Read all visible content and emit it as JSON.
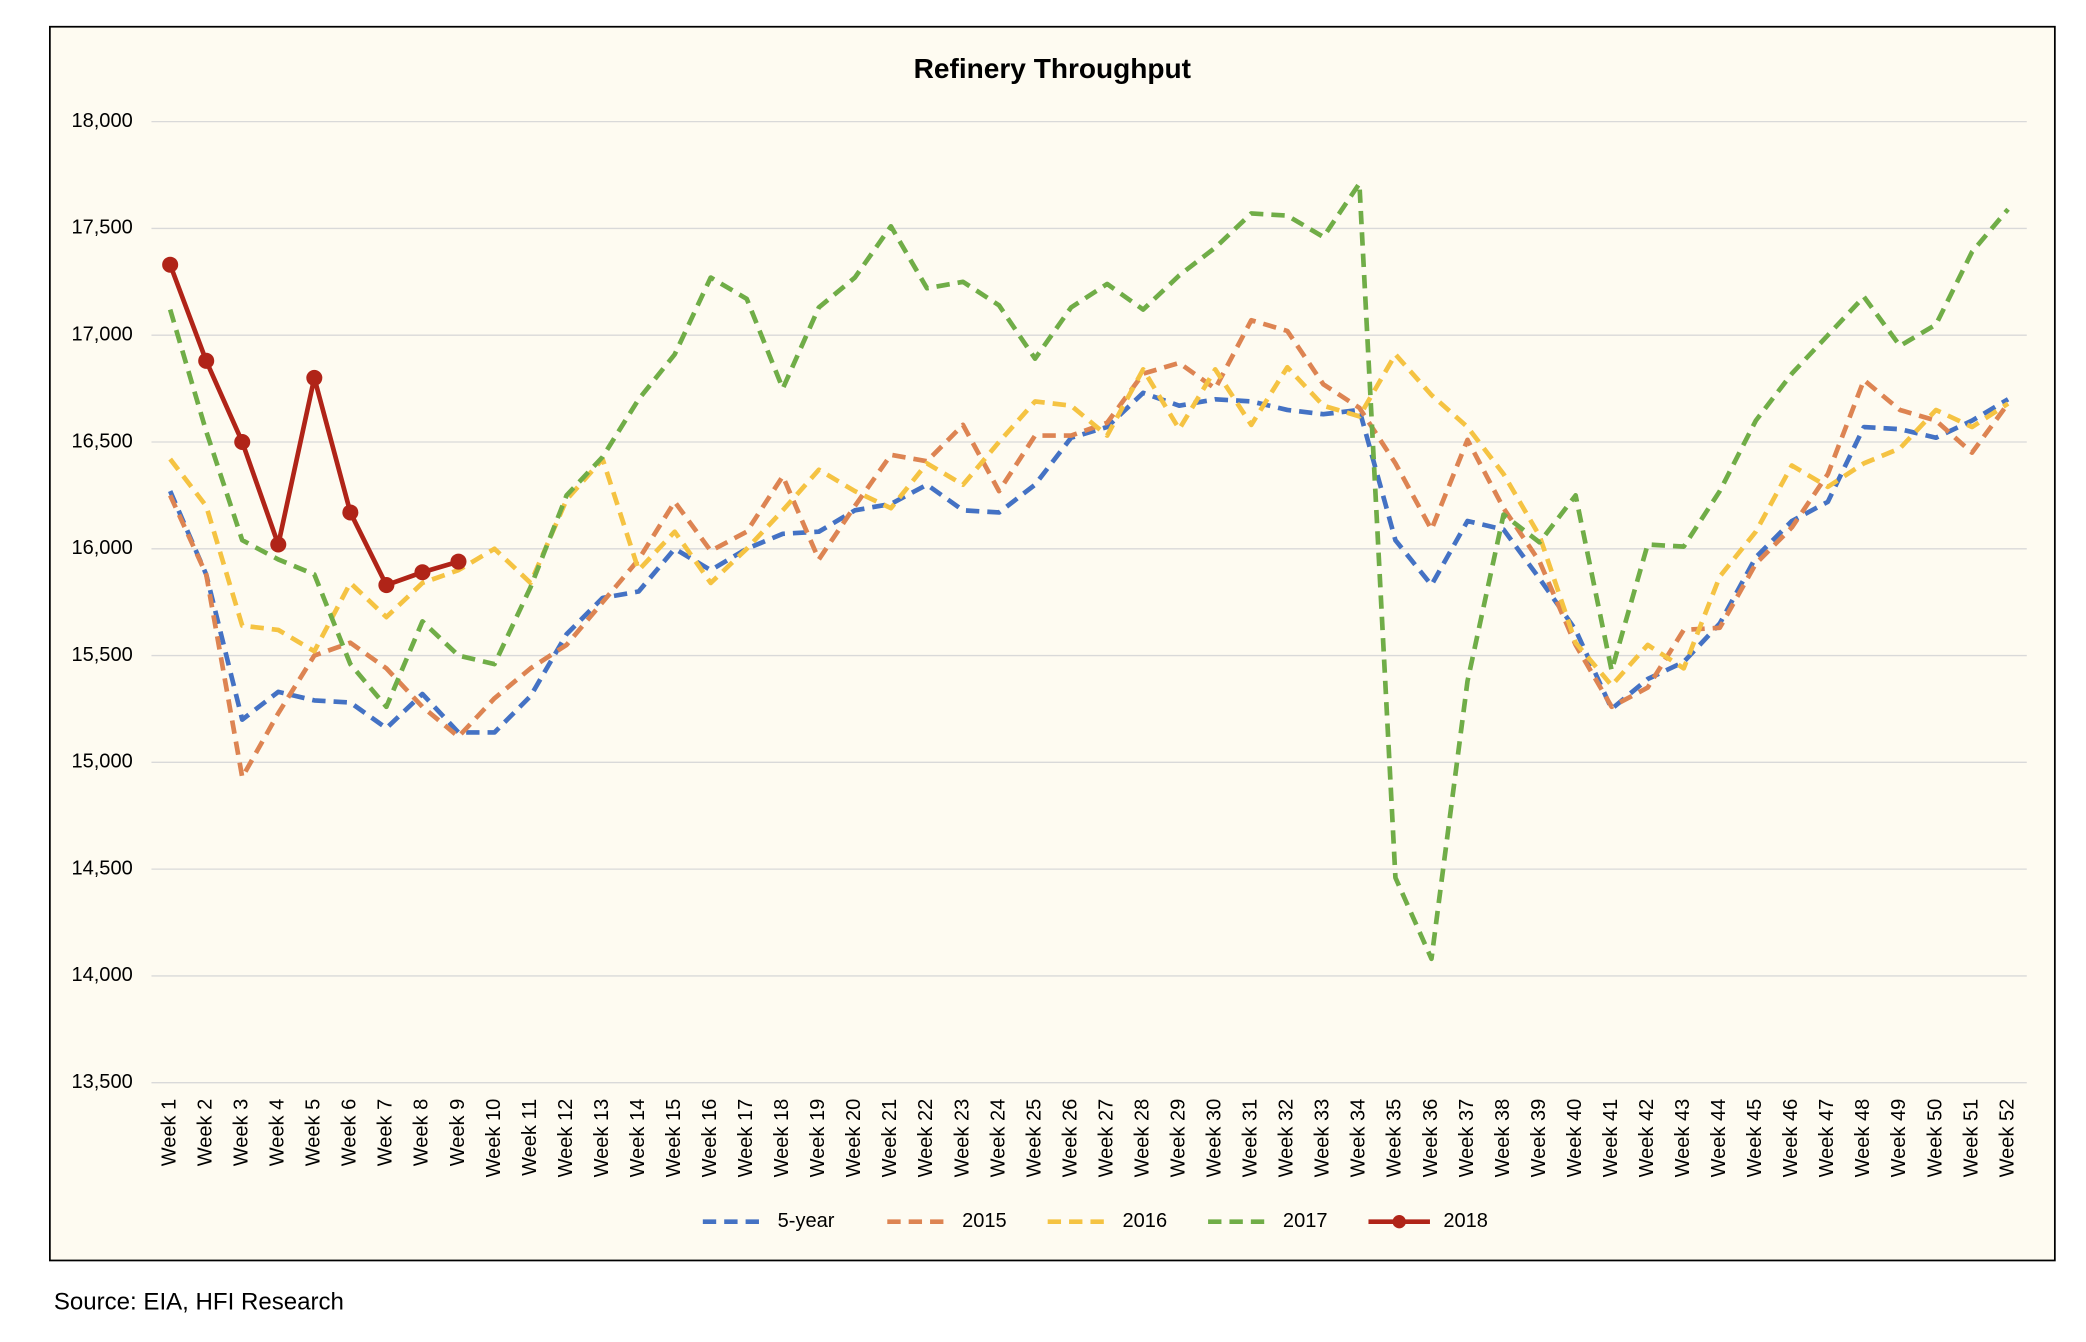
{
  "chart_data": {
    "type": "line",
    "title": "Refinery Throughput",
    "source": "Source: EIA, HFI Research",
    "legend": "bottom",
    "grid": true,
    "categories": [
      "Week 1",
      "Week 2",
      "Week 3",
      "Week 4",
      "Week 5",
      "Week 6",
      "Week 7",
      "Week 8",
      "Week 9",
      "Week 10",
      "Week 11",
      "Week 12",
      "Week 13",
      "Week 14",
      "Week 15",
      "Week 16",
      "Week 17",
      "Week 18",
      "Week 19",
      "Week 20",
      "Week 21",
      "Week 22",
      "Week 23",
      "Week 24",
      "Week 25",
      "Week 26",
      "Week 27",
      "Week 28",
      "Week 29",
      "Week 30",
      "Week 31",
      "Week 32",
      "Week 33",
      "Week 34",
      "Week 35",
      "Week 36",
      "Week 37",
      "Week 38",
      "Week 39",
      "Week 40",
      "Week 41",
      "Week 42",
      "Week 43",
      "Week 44",
      "Week 45",
      "Week 46",
      "Week 47",
      "Week 48",
      "Week 49",
      "Week 50",
      "Week 51",
      "Week 52"
    ],
    "ylim": [
      13500,
      18000
    ],
    "yticks": [
      {
        "value": 13500,
        "label": "13,500"
      },
      {
        "value": 14000,
        "label": "14,000"
      },
      {
        "value": 14500,
        "label": "14,500"
      },
      {
        "value": 15000,
        "label": "15,000"
      },
      {
        "value": 15500,
        "label": "15,500"
      },
      {
        "value": 16000,
        "label": "16,000"
      },
      {
        "value": 16500,
        "label": "16,500"
      },
      {
        "value": 17000,
        "label": "17,000"
      },
      {
        "value": 17500,
        "label": "17,500"
      },
      {
        "value": 18000,
        "label": "18,000"
      }
    ],
    "series": [
      {
        "name": "5-year",
        "color": "#4472c4",
        "dashed": true,
        "values": [
          16270,
          15880,
          15200,
          15330,
          15290,
          15280,
          15160,
          15320,
          15140,
          15140,
          15310,
          15600,
          15770,
          15800,
          16000,
          15900,
          16000,
          16070,
          16080,
          16180,
          16210,
          16300,
          16180,
          16170,
          16300,
          16520,
          16570,
          16730,
          16670,
          16700,
          16690,
          16650,
          16630,
          16650,
          16040,
          15830,
          16130,
          16090,
          15860,
          15620,
          15250,
          15390,
          15470,
          15650,
          15960,
          16130,
          16220,
          16570,
          16560,
          16520,
          16600,
          16700
        ]
      },
      {
        "name": "2015",
        "color": "#dd8452",
        "dashed": true,
        "values": [
          16250,
          15880,
          14930,
          15230,
          15500,
          15560,
          15440,
          15260,
          15120,
          15300,
          15440,
          15550,
          15750,
          15950,
          16220,
          15990,
          16080,
          16340,
          15950,
          16200,
          16440,
          16410,
          16580,
          16270,
          16530,
          16530,
          16590,
          16820,
          16870,
          16750,
          17070,
          17020,
          16770,
          16660,
          16400,
          16090,
          16510,
          16190,
          15940,
          15550,
          15260,
          15350,
          15620,
          15630,
          15930,
          16100,
          16350,
          16790,
          16650,
          16600,
          16450,
          16680
        ]
      },
      {
        "name": "2016",
        "color": "#f5c342",
        "dashed": true,
        "values": [
          16420,
          16200,
          15640,
          15620,
          15520,
          15840,
          15680,
          15840,
          15900,
          16000,
          15840,
          16230,
          16420,
          15900,
          16080,
          15840,
          16000,
          16180,
          16370,
          16270,
          16190,
          16400,
          16300,
          16500,
          16690,
          16670,
          16530,
          16840,
          16560,
          16840,
          16580,
          16850,
          16670,
          16620,
          16910,
          16720,
          16570,
          16350,
          16060,
          15560,
          15360,
          15550,
          15440,
          15870,
          16080,
          16390,
          16290,
          16400,
          16470,
          16650,
          16570,
          16680
        ]
      },
      {
        "name": "2017",
        "color": "#70ad47",
        "dashed": true,
        "values": [
          17120,
          16550,
          16040,
          15950,
          15880,
          15460,
          15260,
          15660,
          15500,
          15460,
          15820,
          16250,
          16430,
          16700,
          16910,
          17270,
          17170,
          16750,
          17130,
          17270,
          17510,
          17220,
          17250,
          17140,
          16890,
          17130,
          17240,
          17120,
          17280,
          17410,
          17570,
          17560,
          17460,
          17710,
          14460,
          14080,
          15380,
          16160,
          16030,
          16250,
          15430,
          16020,
          16010,
          16270,
          16600,
          16820,
          17000,
          17180,
          16950,
          17050,
          17390,
          17590
        ]
      },
      {
        "name": "2018",
        "color": "#b02418",
        "dashed": false,
        "values": [
          17330,
          16880,
          16500,
          16020,
          16800,
          16170,
          15830,
          15890,
          15940,
          null,
          null,
          null,
          null,
          null,
          null,
          null,
          null,
          null,
          null,
          null,
          null,
          null,
          null,
          null,
          null,
          null,
          null,
          null,
          null,
          null,
          null,
          null,
          null,
          null,
          null,
          null,
          null,
          null,
          null,
          null,
          null,
          null,
          null,
          null,
          null,
          null,
          null,
          null,
          null,
          null,
          null,
          null
        ]
      }
    ]
  }
}
